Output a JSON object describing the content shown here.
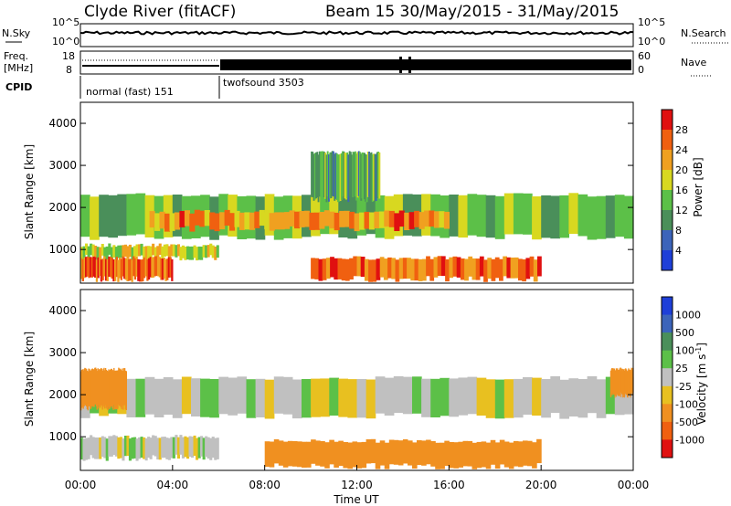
{
  "header": {
    "station": "Clyde River (fitACF)",
    "beam_dates": "Beam 15 30/May/2015 - 31/May/2015"
  },
  "panels": {
    "nsky": {
      "left_label": "N.Sky",
      "left_ticks": [
        "10^5",
        "10^0"
      ],
      "right_label": "N.Search",
      "right_ticks": [
        "10^5",
        "10^0"
      ]
    },
    "freq": {
      "left_label_1": "Freq.",
      "left_label_2": "[MHz]",
      "left_ticks": [
        "18",
        "8"
      ],
      "right_label": "Nave",
      "right_ticks": [
        "60",
        "0"
      ]
    },
    "cpid": {
      "label": "CPID",
      "segments": [
        {
          "start": 0,
          "end": 6,
          "text": "normal (fast) 151"
        },
        {
          "start": 6,
          "end": 24,
          "text": "twofsound 3503"
        }
      ]
    }
  },
  "colors": {
    "power_scale": [
      "#1e3fd8",
      "#3c64ba",
      "#4a8f5a",
      "#5cc048",
      "#d8d820",
      "#f0a020",
      "#f06010",
      "#e01010"
    ],
    "velocity_scale": [
      "#1e3fd8",
      "#3c64ba",
      "#4a8f5a",
      "#5cc048",
      "#c0c0c0",
      "#e8c020",
      "#f09020",
      "#f06010",
      "#e01010"
    ],
    "line": "#000000"
  },
  "chart_data": [
    {
      "type": "heatmap",
      "name": "power",
      "ylabel": "Slant Range [km]",
      "xlabel": "",
      "ylim": [
        200,
        4500
      ],
      "yticks": [
        1000,
        2000,
        3000,
        4000
      ],
      "xlim": [
        0,
        24
      ],
      "colorbar": {
        "label": "Power [dB]",
        "ticks": [
          4,
          8,
          12,
          16,
          20,
          24,
          28
        ],
        "range": [
          0,
          32
        ]
      },
      "echo_bands": [
        {
          "range": [
            1300,
            2300
          ],
          "times": [
            0,
            24
          ],
          "power": 14
        },
        {
          "range": [
            1500,
            1900
          ],
          "times": [
            3,
            16
          ],
          "power": 24
        },
        {
          "range": [
            800,
            1100
          ],
          "times": [
            0,
            6
          ],
          "power": 18
        },
        {
          "range": [
            300,
            800
          ],
          "times": [
            0,
            4
          ],
          "power": 26
        },
        {
          "range": [
            300,
            800
          ],
          "times": [
            10,
            20
          ],
          "power": 25
        },
        {
          "range": [
            2200,
            3300
          ],
          "times": [
            10,
            13
          ],
          "power": 12
        }
      ]
    },
    {
      "type": "heatmap",
      "name": "velocity",
      "ylabel": "Slant Range [km]",
      "xlabel": "Time UT",
      "ylim": [
        200,
        4500
      ],
      "yticks": [
        1000,
        2000,
        3000,
        4000
      ],
      "xlim": [
        0,
        24
      ],
      "xticks": [
        "00:00",
        "04:00",
        "08:00",
        "12:00",
        "16:00",
        "20:00",
        "00:00"
      ],
      "colorbar": {
        "label": "Velocity [m s-1]",
        "ticks": [
          "1000",
          "500",
          "100",
          "25",
          "-25",
          "-100",
          "-500",
          "-1000"
        ]
      },
      "echo_bands": [
        {
          "range": [
            1500,
            2400
          ],
          "times": [
            0,
            24
          ],
          "velocity": 0
        },
        {
          "range": [
            1700,
            2600
          ],
          "times": [
            0,
            2
          ],
          "velocity": -400
        },
        {
          "range": [
            500,
            1000
          ],
          "times": [
            0,
            6
          ],
          "velocity": 0
        },
        {
          "range": [
            300,
            900
          ],
          "times": [
            8,
            20
          ],
          "velocity": -150
        },
        {
          "range": [
            2000,
            2600
          ],
          "times": [
            23,
            24
          ],
          "velocity": -400
        }
      ]
    }
  ]
}
